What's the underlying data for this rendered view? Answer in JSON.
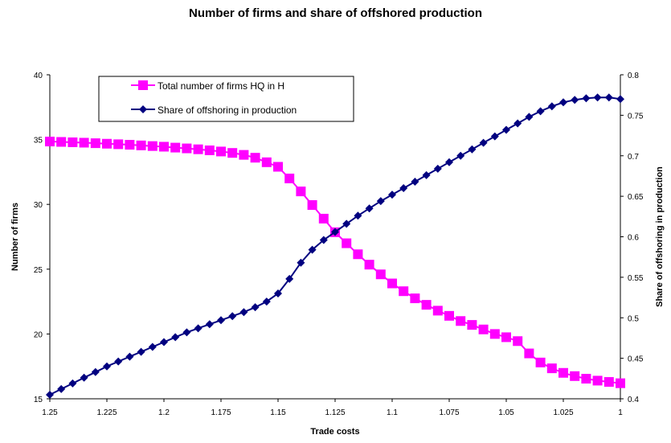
{
  "chart_data": {
    "type": "line",
    "title": "Number of firms and share of offshored production",
    "xlabel": "Trade costs",
    "ylabel_left": "Number of firms",
    "ylabel_right": "Share of offshoring in production",
    "x_ticks": [
      "1.25",
      "1.225",
      "1.2",
      "1.175",
      "1.15",
      "1.125",
      "1.1",
      "1.075",
      "1.05",
      "1.025",
      "1"
    ],
    "x_range": [
      1.25,
      1.0
    ],
    "y_left_ticks": [
      "15",
      "20",
      "25",
      "30",
      "35",
      "40"
    ],
    "y_left_range": [
      15,
      40
    ],
    "y_right_ticks": [
      "0.4",
      "0.45",
      "0.5",
      "0.55",
      "0.6",
      "0.65",
      "0.7",
      "0.75",
      "0.8"
    ],
    "y_right_range": [
      0.4,
      0.8
    ],
    "grid": false,
    "legend_position": "top-left",
    "x": [
      1.25,
      1.245,
      1.24,
      1.235,
      1.23,
      1.225,
      1.22,
      1.215,
      1.21,
      1.205,
      1.2,
      1.195,
      1.19,
      1.185,
      1.18,
      1.175,
      1.17,
      1.165,
      1.16,
      1.155,
      1.15,
      1.145,
      1.14,
      1.135,
      1.13,
      1.125,
      1.12,
      1.115,
      1.11,
      1.105,
      1.1,
      1.095,
      1.09,
      1.085,
      1.08,
      1.075,
      1.07,
      1.065,
      1.06,
      1.055,
      1.05,
      1.045,
      1.04,
      1.035,
      1.03,
      1.025,
      1.02,
      1.015,
      1.01,
      1.005,
      1.0
    ],
    "series": [
      {
        "name": "Total number of firms HQ in H",
        "axis": "left",
        "color": "#ff00ff",
        "marker": "square",
        "values": [
          34.85,
          34.82,
          34.79,
          34.76,
          34.72,
          34.68,
          34.64,
          34.6,
          34.55,
          34.5,
          34.45,
          34.38,
          34.32,
          34.25,
          34.17,
          34.08,
          33.97,
          33.82,
          33.6,
          33.25,
          32.9,
          32.0,
          31.0,
          29.95,
          28.9,
          27.85,
          27.0,
          26.15,
          25.35,
          24.6,
          23.9,
          23.3,
          22.75,
          22.25,
          21.8,
          21.4,
          21.0,
          20.7,
          20.35,
          20.0,
          19.75,
          19.45,
          18.5,
          17.8,
          17.35,
          17.0,
          16.75,
          16.55,
          16.4,
          16.3,
          16.2
        ]
      },
      {
        "name": "Share of offshoring in production",
        "axis": "right",
        "color": "#000080",
        "marker": "diamond",
        "values": [
          0.405,
          0.412,
          0.419,
          0.426,
          0.433,
          0.44,
          0.446,
          0.452,
          0.458,
          0.464,
          0.47,
          0.476,
          0.482,
          0.487,
          0.492,
          0.497,
          0.502,
          0.507,
          0.513,
          0.52,
          0.53,
          0.548,
          0.568,
          0.584,
          0.596,
          0.606,
          0.616,
          0.626,
          0.635,
          0.644,
          0.652,
          0.66,
          0.668,
          0.676,
          0.684,
          0.692,
          0.7,
          0.708,
          0.716,
          0.724,
          0.732,
          0.74,
          0.748,
          0.755,
          0.761,
          0.766,
          0.769,
          0.771,
          0.772,
          0.772,
          0.77
        ]
      }
    ]
  }
}
